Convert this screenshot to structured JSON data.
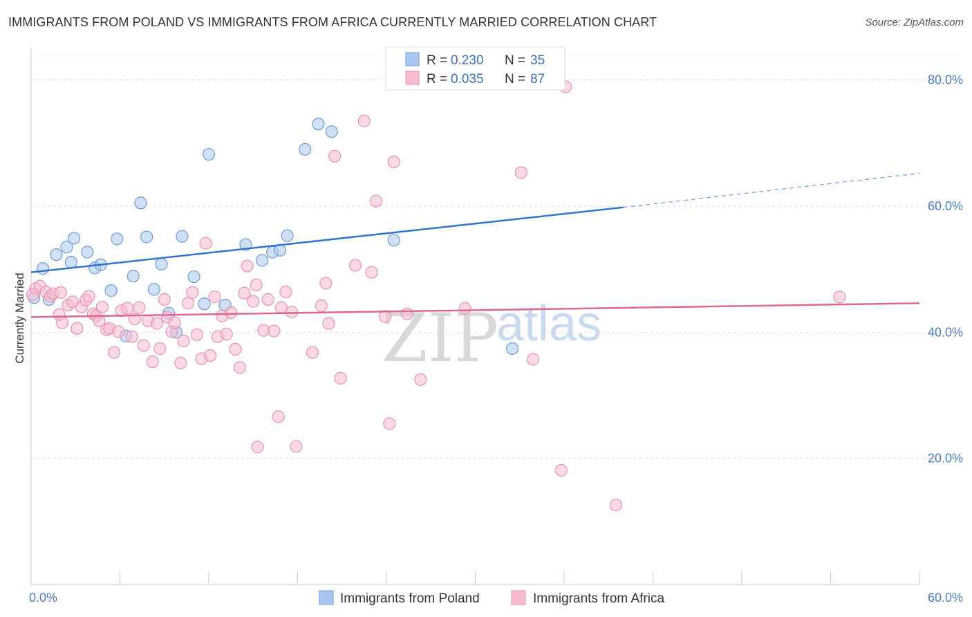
{
  "title": "IMMIGRANTS FROM POLAND VS IMMIGRANTS FROM AFRICA CURRENTLY MARRIED CORRELATION CHART",
  "source": "Source: ZipAtlas.com",
  "watermark": {
    "zip": "ZIP",
    "atlas": "atlas"
  },
  "chart_data": {
    "type": "scatter",
    "ylabel": "Currently Married",
    "xlim": [
      0,
      60
    ],
    "ylim": [
      0,
      85
    ],
    "x_tick_labels": [
      "0.0%",
      "60.0%"
    ],
    "y_ticks": [
      {
        "value": 20,
        "label": "20.0%"
      },
      {
        "value": 40,
        "label": "40.0%"
      },
      {
        "value": 60,
        "label": "60.0%"
      },
      {
        "value": 80,
        "label": "80.0%"
      }
    ],
    "grid": "horizontal dashed",
    "legend": {
      "placement": "top-center",
      "entries": [
        {
          "r_label": "R =",
          "r_value": "0.230",
          "n_label": "N =",
          "n_value": "35"
        },
        {
          "r_label": "R =",
          "r_value": "0.035",
          "n_label": "N =",
          "n_value": "87"
        }
      ]
    },
    "series": [
      {
        "name": "Immigrants from Poland",
        "color": "#a9c6ee",
        "stroke": "#6b9bd8",
        "trend_color": "#2f74d0",
        "trend": {
          "x0": 0,
          "y0": 49.5,
          "x1": 40,
          "y1": 59.8,
          "dash_x1": 60,
          "dash_y1": 65.2
        },
        "points": [
          [
            0.2,
            45.5
          ],
          [
            0.8,
            50.1
          ],
          [
            1.2,
            45.2
          ],
          [
            1.7,
            52.3
          ],
          [
            2.4,
            53.5
          ],
          [
            2.7,
            51.1
          ],
          [
            2.9,
            54.9
          ],
          [
            3.8,
            52.7
          ],
          [
            4.3,
            50.2
          ],
          [
            4.7,
            50.7
          ],
          [
            5.4,
            46.6
          ],
          [
            5.8,
            54.8
          ],
          [
            6.4,
            39.4
          ],
          [
            6.9,
            48.9
          ],
          [
            7.4,
            60.5
          ],
          [
            7.8,
            55.1
          ],
          [
            8.3,
            46.8
          ],
          [
            8.8,
            50.8
          ],
          [
            9.3,
            43.0
          ],
          [
            9.8,
            40.0
          ],
          [
            10.2,
            55.2
          ],
          [
            11.0,
            48.8
          ],
          [
            11.7,
            44.5
          ],
          [
            12.0,
            68.2
          ],
          [
            13.1,
            44.3
          ],
          [
            14.5,
            53.9
          ],
          [
            15.6,
            51.4
          ],
          [
            16.3,
            52.7
          ],
          [
            16.8,
            53.0
          ],
          [
            17.3,
            55.3
          ],
          [
            18.5,
            69.0
          ],
          [
            19.4,
            73.0
          ],
          [
            20.3,
            71.8
          ],
          [
            24.5,
            54.6
          ],
          [
            32.5,
            37.4
          ]
        ]
      },
      {
        "name": "Immigrants from Africa",
        "color": "#f7bcd0",
        "stroke": "#e891b0",
        "trend_color": "#e0668f",
        "trend": {
          "x0": 0,
          "y0": 42.4,
          "x1": 60,
          "y1": 44.6
        },
        "points": [
          [
            0.3,
            46.9
          ],
          [
            0.6,
            47.3
          ],
          [
            1.0,
            46.4
          ],
          [
            1.3,
            45.7
          ],
          [
            1.5,
            46.1
          ],
          [
            1.9,
            42.8
          ],
          [
            2.1,
            41.5
          ],
          [
            2.5,
            44.3
          ],
          [
            2.8,
            44.8
          ],
          [
            3.1,
            40.6
          ],
          [
            3.4,
            44.0
          ],
          [
            3.7,
            45.1
          ],
          [
            3.9,
            45.7
          ],
          [
            4.2,
            42.9
          ],
          [
            4.4,
            42.6
          ],
          [
            4.6,
            41.8
          ],
          [
            4.8,
            44.0
          ],
          [
            5.1,
            40.4
          ],
          [
            5.3,
            40.6
          ],
          [
            5.6,
            36.8
          ],
          [
            5.9,
            40.1
          ],
          [
            6.1,
            43.4
          ],
          [
            6.5,
            43.8
          ],
          [
            6.8,
            39.3
          ],
          [
            7.0,
            42.1
          ],
          [
            7.3,
            43.9
          ],
          [
            7.6,
            37.9
          ],
          [
            7.9,
            41.8
          ],
          [
            8.2,
            35.3
          ],
          [
            8.5,
            41.4
          ],
          [
            8.7,
            37.4
          ],
          [
            9.0,
            45.2
          ],
          [
            9.2,
            42.4
          ],
          [
            9.5,
            40.1
          ],
          [
            9.7,
            41.5
          ],
          [
            10.1,
            35.1
          ],
          [
            10.3,
            38.6
          ],
          [
            10.6,
            44.6
          ],
          [
            10.9,
            46.3
          ],
          [
            11.2,
            39.6
          ],
          [
            11.5,
            35.8
          ],
          [
            11.8,
            54.1
          ],
          [
            12.1,
            36.3
          ],
          [
            12.4,
            45.6
          ],
          [
            12.6,
            39.3
          ],
          [
            12.9,
            42.6
          ],
          [
            13.2,
            39.7
          ],
          [
            13.5,
            43.1
          ],
          [
            13.8,
            37.3
          ],
          [
            14.1,
            34.4
          ],
          [
            14.4,
            46.2
          ],
          [
            14.6,
            50.5
          ],
          [
            15.0,
            44.9
          ],
          [
            15.2,
            47.5
          ],
          [
            15.7,
            40.3
          ],
          [
            16.0,
            45.2
          ],
          [
            16.4,
            40.2
          ],
          [
            16.7,
            26.6
          ],
          [
            16.9,
            43.9
          ],
          [
            17.2,
            46.4
          ],
          [
            17.6,
            43.2
          ],
          [
            17.9,
            21.9
          ],
          [
            15.3,
            21.8
          ],
          [
            19.0,
            36.8
          ],
          [
            19.6,
            44.2
          ],
          [
            19.9,
            47.8
          ],
          [
            20.1,
            41.4
          ],
          [
            20.5,
            67.9
          ],
          [
            20.9,
            32.7
          ],
          [
            21.9,
            50.6
          ],
          [
            22.5,
            73.5
          ],
          [
            23.0,
            49.5
          ],
          [
            23.3,
            60.8
          ],
          [
            23.9,
            42.5
          ],
          [
            24.2,
            25.5
          ],
          [
            24.5,
            67.0
          ],
          [
            25.4,
            42.9
          ],
          [
            26.3,
            32.5
          ],
          [
            29.3,
            43.8
          ],
          [
            33.1,
            65.3
          ],
          [
            33.9,
            35.7
          ],
          [
            35.8,
            18.1
          ],
          [
            36.1,
            78.9
          ],
          [
            39.5,
            12.6
          ],
          [
            54.6,
            45.6
          ],
          [
            0.1,
            46.0
          ],
          [
            2.0,
            46.3
          ]
        ]
      }
    ]
  }
}
